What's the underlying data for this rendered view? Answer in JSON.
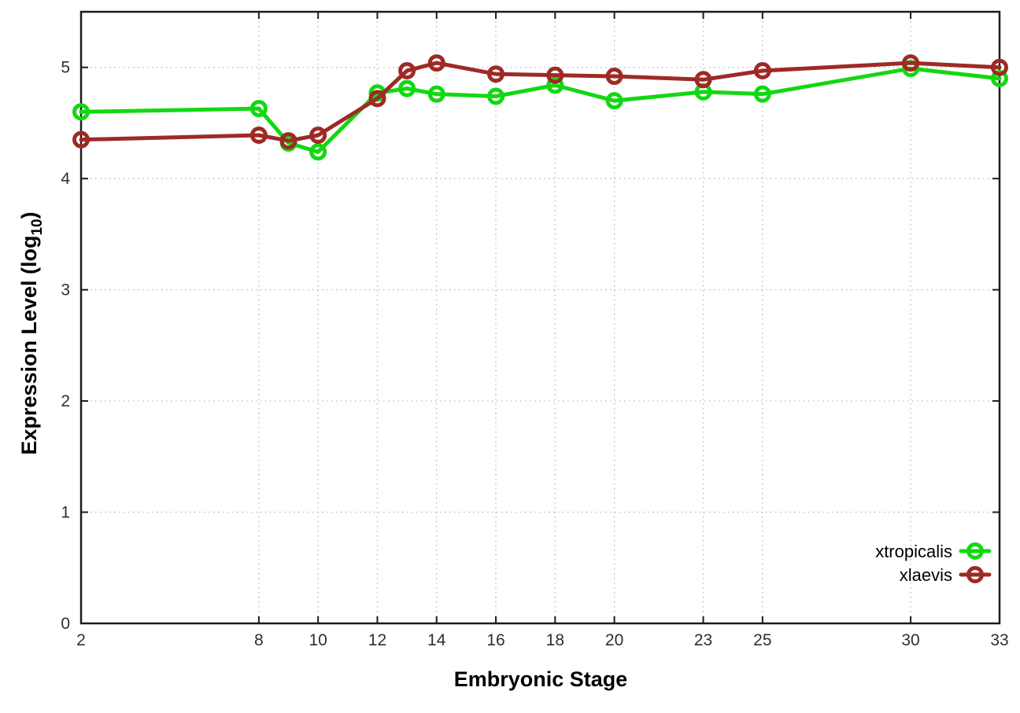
{
  "figure": {
    "background": "#ffffff",
    "border_color": "#1c1c1c",
    "grid_color": "#b8b8b8",
    "tick_label_color": "#2f2f2f"
  },
  "chart_data": {
    "type": "line",
    "title": "",
    "xlabel": "Embryonic Stage",
    "ylabel": "Expression Level (log10)",
    "ylabel_parts": {
      "prefix": "Expression Level (log",
      "sub": "10",
      "suffix": ")"
    },
    "xlim": [
      2,
      33
    ],
    "ylim": [
      0,
      5.5
    ],
    "x_ticks": [
      2,
      8,
      10,
      12,
      14,
      16,
      18,
      20,
      23,
      25,
      30,
      33
    ],
    "y_ticks": [
      0,
      1,
      2,
      3,
      4,
      5
    ],
    "grid": true,
    "legend_position": "inside bottom-right",
    "marker": "open-circle",
    "x": [
      2,
      8,
      9,
      10,
      12,
      13,
      14,
      16,
      18,
      20,
      23,
      25,
      30,
      33
    ],
    "series": [
      {
        "name": "xtropicalis",
        "color": "#12d812",
        "values": [
          4.6,
          4.63,
          4.32,
          4.24,
          4.77,
          4.81,
          4.76,
          4.74,
          4.84,
          4.7,
          4.78,
          4.76,
          4.99,
          4.9
        ]
      },
      {
        "name": "xlaevis",
        "color": "#9e2a25",
        "values": [
          4.35,
          4.39,
          4.34,
          4.39,
          4.72,
          4.97,
          5.04,
          4.94,
          4.93,
          4.92,
          4.89,
          4.97,
          5.04,
          5.0
        ]
      }
    ]
  }
}
